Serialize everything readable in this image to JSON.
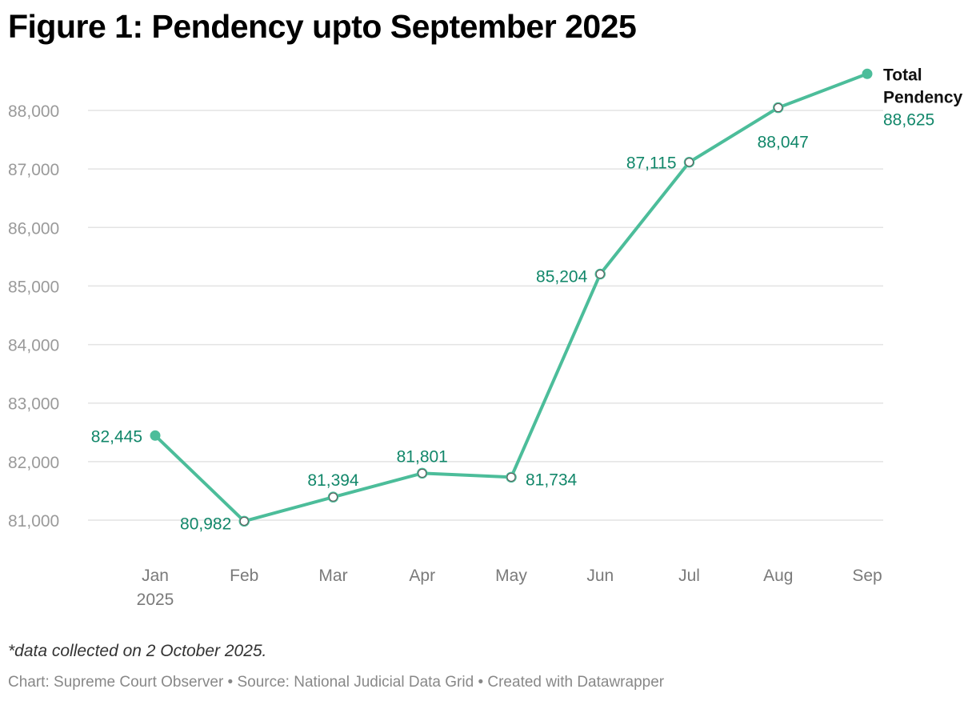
{
  "title": "Figure 1: Pendency upto September 2025",
  "note": "*data collected on 2 October 2025.",
  "credit": "Chart: Supreme Court Observer • Source: National Judicial Data Grid • Created with Datawrapper",
  "colors": {
    "line": "#4cbd9a",
    "label": "#12876a",
    "grid": "#e3e3e3"
  },
  "chart_data": {
    "type": "line",
    "title": "Figure 1: Pendency upto September 2025",
    "categories": [
      "Jan",
      "Feb",
      "Mar",
      "Apr",
      "May",
      "Jun",
      "Jul",
      "Aug",
      "Sep"
    ],
    "category_sublabels": [
      "2025",
      "",
      "",
      "",
      "",
      "",
      "",
      "",
      ""
    ],
    "series": [
      {
        "name_lines": [
          "Total",
          "Pendency"
        ],
        "values": [
          82445,
          80982,
          81394,
          81801,
          81734,
          85204,
          87115,
          88047,
          88625
        ],
        "value_labels": [
          "82,445",
          "80,982",
          "81,394",
          "81,801",
          "81,734",
          "85,204",
          "87,115",
          "88,047",
          "88,625"
        ]
      }
    ],
    "yticks": [
      81000,
      82000,
      83000,
      84000,
      85000,
      86000,
      87000,
      88000
    ],
    "ytick_labels": [
      "81,000",
      "82,000",
      "83,000",
      "84,000",
      "85,000",
      "86,000",
      "87,000",
      "88,000"
    ],
    "ylim": [
      80500,
      88800
    ],
    "grid": true,
    "legend": "end-label",
    "xlabel": "",
    "ylabel": ""
  }
}
